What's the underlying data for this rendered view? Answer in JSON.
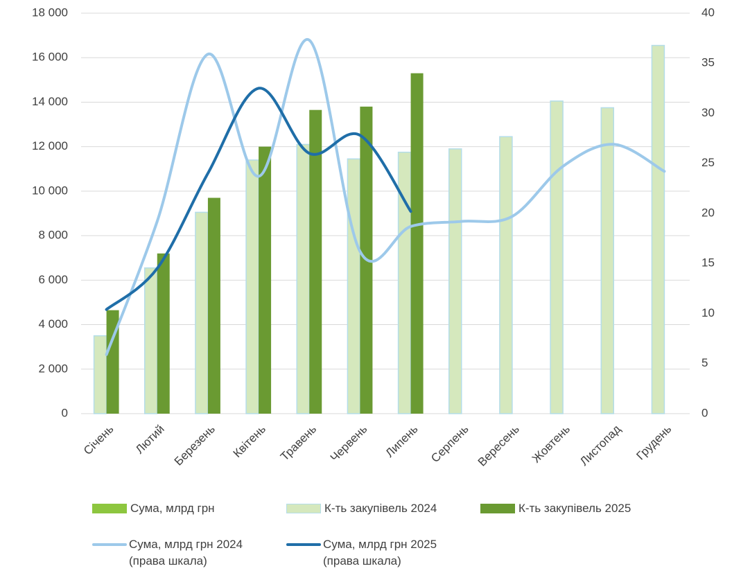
{
  "chart_data": {
    "type": "bar",
    "categories": [
      "Січень",
      "Лютий",
      "Березень",
      "Квітень",
      "Травень",
      "Червень",
      "Липень",
      "Серпень",
      "Вересень",
      "Жовтень",
      "Листопад",
      "Грудень"
    ],
    "series": [
      {
        "name": "Сума, млрд грн",
        "type": "bar",
        "color": "#8dc63f",
        "values": [
          null,
          null,
          null,
          null,
          null,
          null,
          null,
          null,
          null,
          null,
          null,
          null
        ]
      },
      {
        "name": "К-ть закупівель 2024",
        "type": "bar",
        "color": "#d5e8bd",
        "values": [
          3500,
          6550,
          9050,
          11400,
          12100,
          11450,
          11750,
          11900,
          12450,
          14050,
          13750,
          16550
        ]
      },
      {
        "name": "К-ть закупівель 2025",
        "type": "bar",
        "color": "#6a9a32",
        "values": [
          4650,
          7200,
          9700,
          12000,
          13650,
          13800,
          15300,
          null,
          null,
          null,
          null,
          null
        ]
      },
      {
        "name": "Сума, млрд грн 2024\n(права шкала)",
        "type": "line",
        "axis": "y2",
        "color": "#9dc9ea",
        "values": [
          5.9,
          19.2,
          35.9,
          23.7,
          37.3,
          16.2,
          18.7,
          19.2,
          19.7,
          24.7,
          26.9,
          24.2
        ]
      },
      {
        "name": "Сума, млрд грн 2025\n(права шкала)",
        "type": "line",
        "axis": "y2",
        "color": "#1f6ea8",
        "values": [
          10.4,
          14.5,
          24.0,
          32.5,
          26.0,
          27.8,
          20.2,
          null,
          null,
          null,
          null,
          null
        ]
      }
    ],
    "ylim": [
      0,
      18000
    ],
    "yticks": [
      {
        "value": 0,
        "label": "0"
      },
      {
        "value": 2000,
        "label": "2 000"
      },
      {
        "value": 4000,
        "label": "4 000"
      },
      {
        "value": 6000,
        "label": "6 000"
      },
      {
        "value": 8000,
        "label": "8 000"
      },
      {
        "value": 10000,
        "label": "10 000"
      },
      {
        "value": 12000,
        "label": "12 000"
      },
      {
        "value": 14000,
        "label": "14 000"
      },
      {
        "value": 16000,
        "label": "16 000"
      },
      {
        "value": 18000,
        "label": "18 000"
      }
    ],
    "y2lim": [
      0,
      40
    ],
    "y2ticks": [
      0,
      5,
      10,
      15,
      20,
      25,
      30,
      35,
      40
    ],
    "grid": true
  }
}
